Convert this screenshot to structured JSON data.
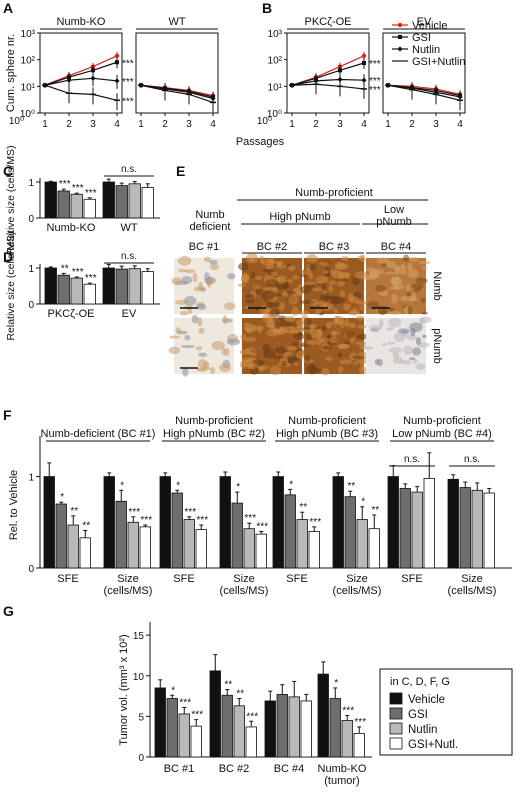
{
  "panel_letters": {
    "A": "A",
    "B": "B",
    "C": "C",
    "D": "D",
    "E": "E",
    "F": "F",
    "G": "G"
  },
  "colors": {
    "black": "#111111",
    "dark_gray": "#6e6e6e",
    "light_gray": "#b9b9b9",
    "white": "#ffffff",
    "vehicle_red": "#e0201b",
    "stain_brown": "#b8742f",
    "stain_light": "#efe6dc"
  },
  "chart_data": [
    {
      "id": "A",
      "type": "line",
      "log_y": true,
      "subpanels": [
        {
          "title": "Numb-KO",
          "x": [
            1,
            2,
            3,
            4
          ],
          "series": [
            {
              "name": "Vehicle",
              "values": [
                11,
                25,
                55,
                140
              ],
              "color": "#e0201b",
              "marker": "circle",
              "sig": ""
            },
            {
              "name": "GSI",
              "values": [
                11,
                22,
                40,
                80
              ],
              "color": "#111111",
              "marker": "square",
              "sig": "***"
            },
            {
              "name": "Nutlin",
              "values": [
                11,
                17,
                20,
                16
              ],
              "color": "#111111",
              "marker": "diamond",
              "sig": "***"
            },
            {
              "name": "GSI+Nutlin",
              "values": [
                11,
                5.5,
                5,
                3
              ],
              "color": "#111111",
              "marker": "dash",
              "sig": "***"
            }
          ]
        },
        {
          "title": "WT",
          "x": [
            1,
            2,
            3,
            4
          ],
          "series": [
            {
              "name": "Vehicle",
              "values": [
                11,
                9,
                7,
                4.5
              ],
              "color": "#e0201b",
              "marker": "circle",
              "sig": ""
            },
            {
              "name": "GSI",
              "values": [
                11,
                8.5,
                6.5,
                4
              ],
              "color": "#111111",
              "marker": "square",
              "sig": ""
            },
            {
              "name": "Nutlin",
              "values": [
                11,
                8,
                6,
                3.5
              ],
              "color": "#111111",
              "marker": "diamond",
              "sig": ""
            },
            {
              "name": "GSI+Nutlin",
              "values": [
                11,
                7,
                5,
                2.5
              ],
              "color": "#111111",
              "marker": "dash",
              "sig": ""
            }
          ]
        }
      ],
      "ylabel": "Cum. sphere nr.",
      "xlabel": "Passages",
      "y_ticks": [
        "10⁰",
        "10¹",
        "10²",
        "10³"
      ],
      "x_ticks": [
        "1",
        "2",
        "3",
        "4"
      ]
    },
    {
      "id": "B",
      "type": "line",
      "log_y": true,
      "subpanels": [
        {
          "title": "PKCζ-OE",
          "x": [
            1,
            2,
            3,
            4
          ],
          "series": [
            {
              "name": "Vehicle",
              "values": [
                11,
                22,
                55,
                140
              ],
              "color": "#e0201b",
              "marker": "circle",
              "sig": ""
            },
            {
              "name": "GSI",
              "values": [
                11,
                20,
                40,
                75
              ],
              "color": "#111111",
              "marker": "square",
              "sig": "***"
            },
            {
              "name": "Nutlin",
              "values": [
                11,
                16,
                18,
                17
              ],
              "color": "#111111",
              "marker": "diamond",
              "sig": "***"
            },
            {
              "name": "GSI+Nutlin",
              "values": [
                11,
                12,
                10,
                8
              ],
              "color": "#111111",
              "marker": "dash",
              "sig": "***"
            }
          ]
        },
        {
          "title": "EV",
          "x": [
            1,
            2,
            3,
            4
          ],
          "series": [
            {
              "name": "Vehicle",
              "values": [
                11,
                10,
                8,
                5
              ],
              "color": "#e0201b",
              "marker": "circle",
              "sig": ""
            },
            {
              "name": "GSI",
              "values": [
                11,
                9,
                7,
                4.5
              ],
              "color": "#111111",
              "marker": "square",
              "sig": ""
            },
            {
              "name": "Nutlin",
              "values": [
                11,
                8.5,
                6,
                4
              ],
              "color": "#111111",
              "marker": "diamond",
              "sig": ""
            },
            {
              "name": "GSI+Nutlin",
              "values": [
                11,
                7.5,
                5,
                3
              ],
              "color": "#111111",
              "marker": "dash",
              "sig": ""
            }
          ]
        }
      ],
      "legend": [
        "Vehicle",
        "GSI",
        "Nutlin",
        "GSI+Nutlin"
      ],
      "y_ticks": [
        "10⁰",
        "10¹",
        "10²",
        "10³"
      ],
      "x_ticks": [
        "1",
        "2",
        "3",
        "4"
      ],
      "xlabel": "Passages"
    },
    {
      "id": "C",
      "type": "bar",
      "ylabel": "Relative size (cells/MS)",
      "ylim": [
        0,
        1
      ],
      "y_ticks": [
        "0",
        "1"
      ],
      "groups": [
        {
          "label": "Numb-KO",
          "values": [
            1.0,
            0.75,
            0.66,
            0.52
          ],
          "errors": [
            0.02,
            0.05,
            0.03,
            0.04
          ],
          "sig": [
            "",
            "***",
            "***",
            "***"
          ],
          "bracket": ""
        },
        {
          "label": "WT",
          "values": [
            1.0,
            0.9,
            0.95,
            0.85
          ],
          "errors": [
            0.08,
            0.07,
            0.06,
            0.1
          ],
          "sig": [
            "",
            "",
            "",
            ""
          ],
          "bracket": "n.s."
        }
      ]
    },
    {
      "id": "D",
      "type": "bar",
      "ylabel": "Relative size (cells/MS)",
      "ylim": [
        0,
        1
      ],
      "y_ticks": [
        "0",
        "1"
      ],
      "groups": [
        {
          "label": "PKCζ-OE",
          "values": [
            1.0,
            0.8,
            0.72,
            0.55
          ],
          "errors": [
            0.03,
            0.05,
            0.03,
            0.03
          ],
          "sig": [
            "",
            "**",
            "***",
            "***"
          ],
          "bracket": ""
        },
        {
          "label": "EV",
          "values": [
            1.0,
            0.97,
            0.98,
            0.9
          ],
          "errors": [
            0.1,
            0.08,
            0.08,
            0.08
          ],
          "sig": [
            "",
            "",
            "",
            ""
          ],
          "bracket": "n.s."
        }
      ]
    },
    {
      "id": "F",
      "type": "bar",
      "ylabel": "Rel. to Vehicle",
      "ylim": [
        0,
        1.4
      ],
      "y_ticks": [
        "0",
        "1"
      ],
      "blocks": [
        {
          "title1": "Numb-deficient (BC #1)",
          "title2": "",
          "groups": [
            {
              "label": "SFE",
              "label2": "",
              "values": [
                1.0,
                0.7,
                0.47,
                0.33
              ],
              "errors": [
                0.15,
                0.02,
                0.1,
                0.08
              ],
              "sig": [
                "",
                "*",
                "**",
                "**"
              ],
              "bracket": ""
            },
            {
              "label": "Size",
              "label2": "(cells/MS)",
              "values": [
                1.0,
                0.73,
                0.5,
                0.45
              ],
              "errors": [
                0.04,
                0.12,
                0.06,
                0.02
              ],
              "sig": [
                "",
                "*",
                "***",
                "***"
              ],
              "bracket": ""
            }
          ]
        },
        {
          "title1": "Numb-proficient",
          "title2": "High pNumb (BC #2)",
          "groups": [
            {
              "label": "SFE",
              "label2": "",
              "values": [
                1.0,
                0.82,
                0.53,
                0.42
              ],
              "errors": [
                0.04,
                0.03,
                0.03,
                0.05
              ],
              "sig": [
                "",
                "*",
                "***",
                "***"
              ],
              "bracket": ""
            },
            {
              "label": "Size",
              "label2": "(cells/MS)",
              "values": [
                1.0,
                0.71,
                0.43,
                0.37
              ],
              "errors": [
                0.05,
                0.12,
                0.06,
                0.03
              ],
              "sig": [
                "",
                "*",
                "***",
                "***"
              ],
              "bracket": ""
            }
          ]
        },
        {
          "title1": "Numb-proficient",
          "title2": "High pNumb (BC #3)",
          "groups": [
            {
              "label": "SFE",
              "label2": "",
              "values": [
                1.0,
                0.8,
                0.53,
                0.4
              ],
              "errors": [
                0.05,
                0.06,
                0.08,
                0.05
              ],
              "sig": [
                "",
                "*",
                "**",
                "***"
              ],
              "bracket": ""
            },
            {
              "label": "Size",
              "label2": "(cells/MS)",
              "values": [
                1.0,
                0.78,
                0.53,
                0.43
              ],
              "errors": [
                0.04,
                0.06,
                0.14,
                0.15
              ],
              "sig": [
                "",
                "**",
                "*",
                "**"
              ],
              "bracket": ""
            }
          ]
        },
        {
          "title1": "Numb-proficient",
          "title2": "Low pNumb (BC #4)",
          "groups": [
            {
              "label": "SFE",
              "label2": "",
              "values": [
                1.0,
                0.87,
                0.83,
                0.98
              ],
              "errors": [
                0.12,
                0.05,
                0.06,
                0.28
              ],
              "sig": [
                "",
                "",
                "",
                ""
              ],
              "bracket": "n.s."
            },
            {
              "label": "Size",
              "label2": "(cells/MS)",
              "values": [
                0.97,
                0.88,
                0.85,
                0.82
              ],
              "errors": [
                0.05,
                0.06,
                0.08,
                0.05
              ],
              "sig": [
                "",
                "",
                "",
                ""
              ],
              "bracket": "n.s."
            }
          ]
        }
      ]
    },
    {
      "id": "G",
      "type": "bar",
      "ylabel": "Tumor vol. (mm³ x 10²)",
      "ylim": [
        0,
        16
      ],
      "y_ticks": [
        "0",
        "5",
        "10",
        "15"
      ],
      "groups": [
        {
          "label": "BC #1",
          "label2": "",
          "values": [
            8.5,
            7.2,
            5.3,
            3.8
          ],
          "errors": [
            1.0,
            0.4,
            0.8,
            0.8
          ],
          "sig": [
            "",
            "*",
            "***",
            "***"
          ]
        },
        {
          "label": "BC #2",
          "label2": "",
          "values": [
            10.6,
            7.6,
            6.3,
            3.7
          ],
          "errors": [
            2.0,
            0.7,
            0.9,
            0.7
          ],
          "sig": [
            "",
            "**",
            "**",
            "***"
          ]
        },
        {
          "label": "BC #4",
          "label2": "",
          "values": [
            6.9,
            7.7,
            7.4,
            6.9
          ],
          "errors": [
            1.2,
            1.2,
            1.9,
            0.8
          ],
          "sig": [
            "",
            "",
            "",
            ""
          ]
        },
        {
          "label": "Numb-KO",
          "label2": "(tumor)",
          "values": [
            10.2,
            7.2,
            4.5,
            2.9
          ],
          "errors": [
            1.5,
            1.3,
            0.6,
            0.8
          ],
          "sig": [
            "",
            "*",
            "***",
            "***"
          ]
        }
      ],
      "legend_title": "in C, D, F, G",
      "legend": [
        "Vehicle",
        "GSI",
        "Nutlin",
        "GSI+Nutl."
      ]
    }
  ],
  "panel_e": {
    "header": "Numb-proficient",
    "col_groups": [
      {
        "label1": "Numb",
        "label2": "deficient"
      },
      {
        "label1": "High pNumb",
        "label2": ""
      },
      {
        "label1": "Low",
        "label2": "pNumb"
      }
    ],
    "cols": [
      "BC #1",
      "BC #2",
      "BC #3",
      "BC #4"
    ],
    "rows": [
      "Numb",
      "pNumb"
    ],
    "stain": [
      [
        "light",
        "dark",
        "dark",
        "medium"
      ],
      [
        "light",
        "dark",
        "dark",
        "pale"
      ]
    ]
  }
}
